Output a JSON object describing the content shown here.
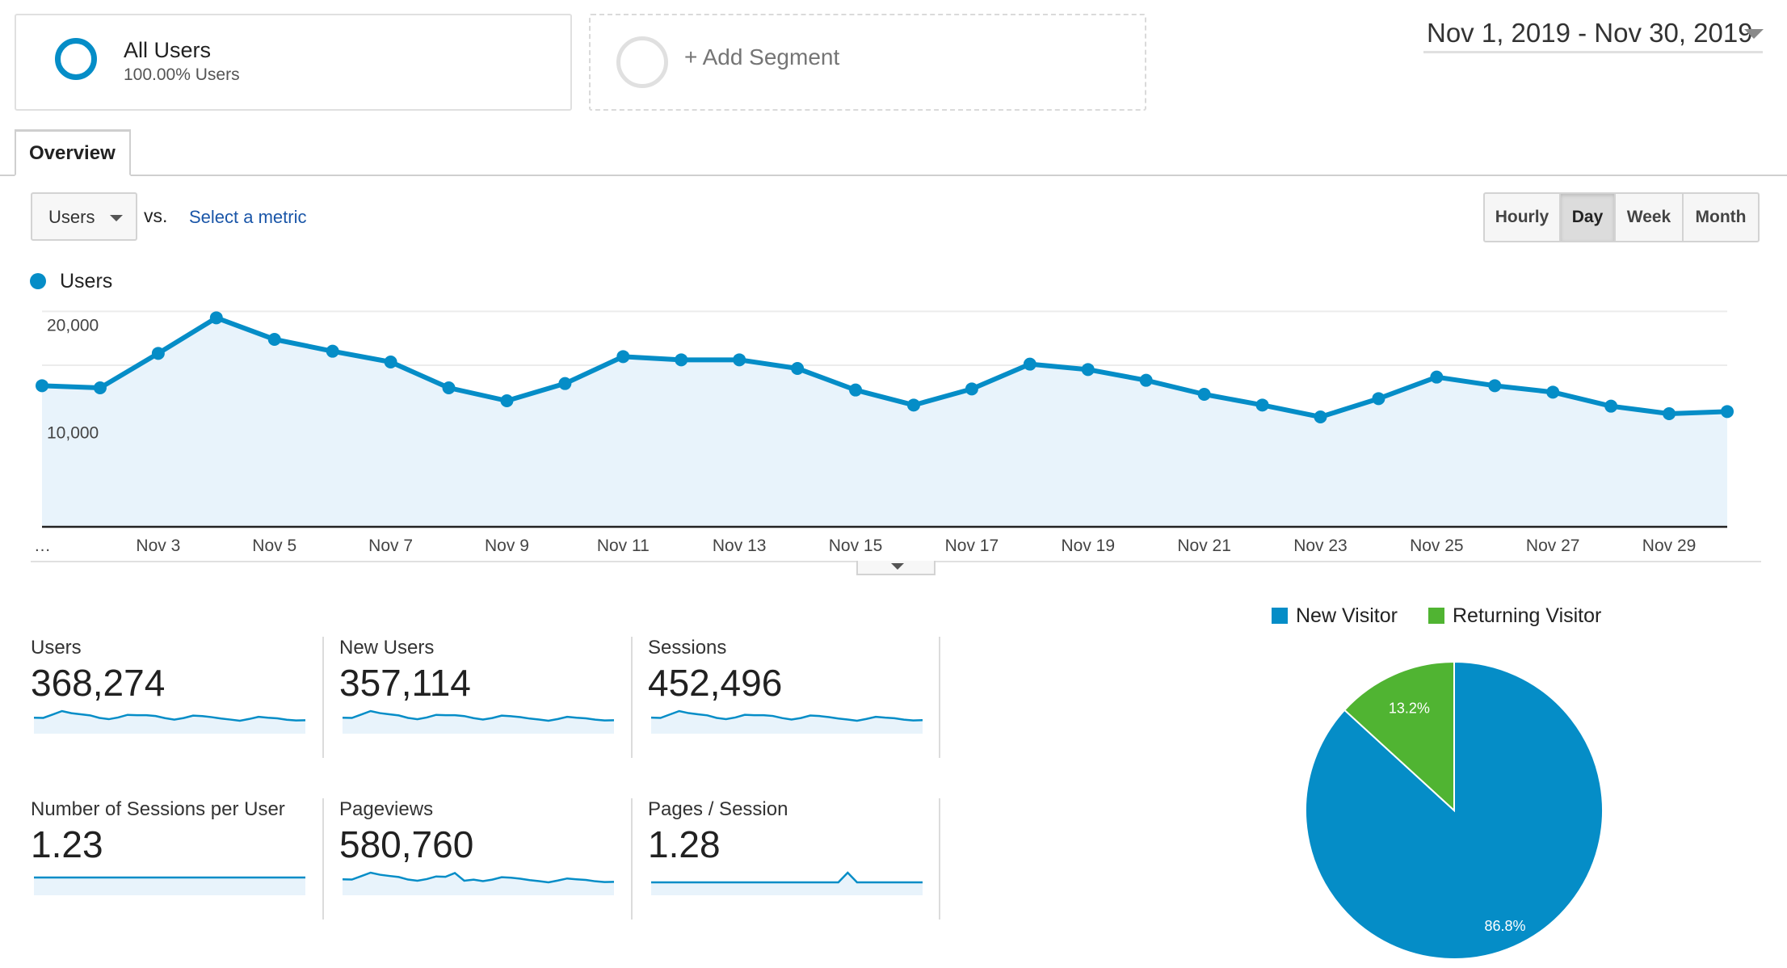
{
  "segments": {
    "all_users": {
      "title": "All Users",
      "subtitle": "100.00% Users"
    },
    "add_segment": {
      "label": "+ Add Segment"
    }
  },
  "date_range": "Nov 1, 2019 - Nov 30, 2019",
  "tabs": [
    {
      "label": "Overview",
      "active": true
    }
  ],
  "metric_selector": {
    "selected": "Users",
    "vs_label": "vs.",
    "select_metric_link": "Select a metric"
  },
  "granularity": {
    "options": [
      "Hourly",
      "Day",
      "Week",
      "Month"
    ],
    "selected": "Day"
  },
  "colors": {
    "primary": "#058dc7",
    "returning": "#50b432",
    "area_fill": "#e8f3fb",
    "link": "#1a56a8"
  },
  "chart_data": [
    {
      "type": "area",
      "series": [
        {
          "name": "Users",
          "x": [
            "Nov 1",
            "Nov 2",
            "Nov 3",
            "Nov 4",
            "Nov 5",
            "Nov 6",
            "Nov 7",
            "Nov 8",
            "Nov 9",
            "Nov 10",
            "Nov 11",
            "Nov 12",
            "Nov 13",
            "Nov 14",
            "Nov 15",
            "Nov 16",
            "Nov 17",
            "Nov 18",
            "Nov 19",
            "Nov 20",
            "Nov 21",
            "Nov 22",
            "Nov 23",
            "Nov 24",
            "Nov 25",
            "Nov 26",
            "Nov 27",
            "Nov 28",
            "Nov 29",
            "Nov 30"
          ],
          "values": [
            13100,
            12900,
            16100,
            19400,
            17400,
            16300,
            15300,
            12900,
            11700,
            13300,
            15800,
            15500,
            15500,
            14700,
            12700,
            11300,
            12800,
            15100,
            14600,
            13600,
            12300,
            11300,
            10200,
            11900,
            13900,
            13100,
            12500,
            11200,
            10500,
            10700
          ]
        }
      ],
      "y_ticks": [
        "20,000",
        "10,000"
      ],
      "ylim": [
        0,
        20400
      ],
      "x_tick_labels": [
        "…",
        "Nov 3",
        "Nov 5",
        "Nov 7",
        "Nov 9",
        "Nov 11",
        "Nov 13",
        "Nov 15",
        "Nov 17",
        "Nov 19",
        "Nov 21",
        "Nov 23",
        "Nov 25",
        "Nov 27",
        "Nov 29"
      ],
      "grid": true
    },
    {
      "type": "pie",
      "series": [
        {
          "name": "New Visitor",
          "value": 86.8,
          "label": "86.8%",
          "color": "#058dc7"
        },
        {
          "name": "Returning Visitor",
          "value": 13.2,
          "label": "13.2%",
          "color": "#50b432"
        }
      ],
      "legend_position": "top"
    }
  ],
  "scorecards": [
    {
      "name": "Users",
      "value": "368,274",
      "spark": [
        13100,
        12900,
        16100,
        19400,
        17400,
        16300,
        15300,
        12900,
        11700,
        13300,
        15800,
        15500,
        15500,
        14700,
        12700,
        11300,
        12800,
        15100,
        14600,
        13600,
        12300,
        11300,
        10200,
        11900,
        13900,
        13100,
        12500,
        11200,
        10500,
        10700
      ]
    },
    {
      "name": "New Users",
      "value": "357,114",
      "spark": [
        12700,
        12500,
        15600,
        18800,
        16900,
        15800,
        14800,
        12500,
        11300,
        12900,
        15300,
        15000,
        15000,
        14200,
        12300,
        11000,
        12400,
        14600,
        14100,
        13200,
        11900,
        11000,
        9900,
        11500,
        13500,
        12700,
        12100,
        10900,
        10200,
        10400
      ]
    },
    {
      "name": "Sessions",
      "value": "452,496",
      "spark": [
        16100,
        15800,
        19800,
        23800,
        21400,
        20000,
        18800,
        15800,
        14400,
        16300,
        19400,
        19000,
        19000,
        18100,
        15600,
        13900,
        15700,
        18600,
        18000,
        16700,
        15100,
        13900,
        12500,
        14600,
        17100,
        16100,
        15400,
        13800,
        12900,
        13200
      ]
    },
    {
      "name": "Number of Sessions per User",
      "value": "1.23",
      "spark": [
        1.23,
        1.23,
        1.23,
        1.23,
        1.23,
        1.23,
        1.23,
        1.23,
        1.23,
        1.23,
        1.23,
        1.23,
        1.23,
        1.23,
        1.23,
        1.23,
        1.23,
        1.23,
        1.23,
        1.23,
        1.23,
        1.23,
        1.23,
        1.23,
        1.23,
        1.23,
        1.23,
        1.23,
        1.23,
        1.23
      ]
    },
    {
      "name": "Pageviews",
      "value": "580,760",
      "spark": [
        20600,
        20200,
        25300,
        30500,
        27400,
        25600,
        24000,
        20200,
        18400,
        20900,
        24800,
        24300,
        30000,
        18500,
        20000,
        17800,
        20100,
        23700,
        22900,
        21400,
        19300,
        17800,
        16000,
        18700,
        21800,
        20600,
        19600,
        17600,
        16500,
        16800
      ]
    },
    {
      "name": "Pages / Session",
      "value": "1.28",
      "spark": [
        1.28,
        1.28,
        1.28,
        1.28,
        1.28,
        1.28,
        1.28,
        1.28,
        1.28,
        1.28,
        1.28,
        1.28,
        1.28,
        1.28,
        1.28,
        1.28,
        1.28,
        1.28,
        1.28,
        1.28,
        1.28,
        1.33,
        1.28,
        1.28,
        1.28,
        1.28,
        1.28,
        1.28,
        1.28,
        1.28
      ]
    }
  ]
}
